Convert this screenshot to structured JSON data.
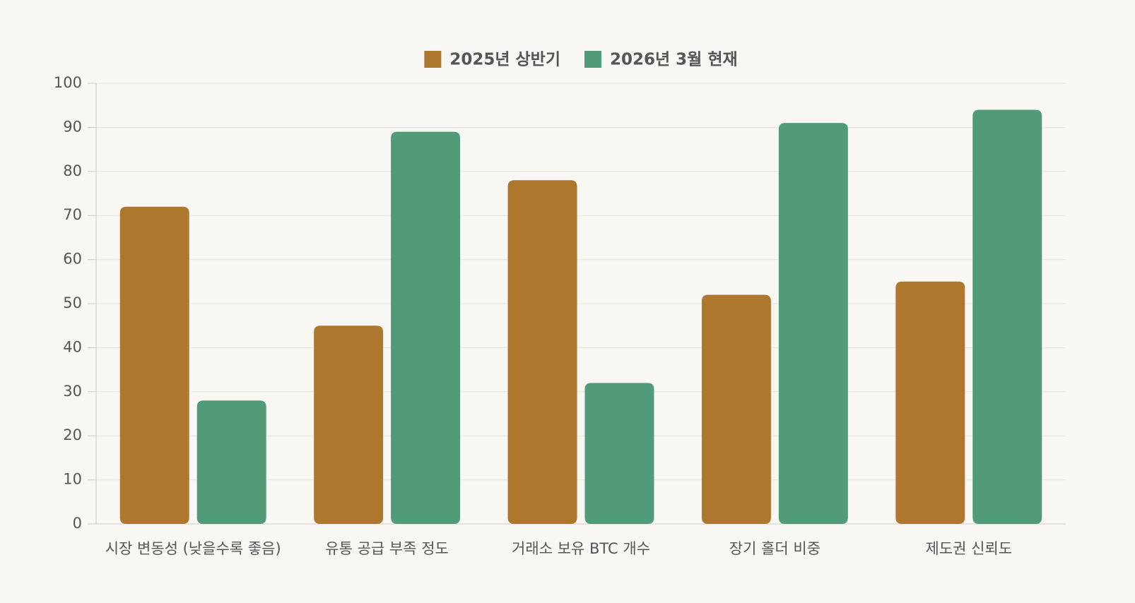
{
  "chart_data": {
    "type": "bar",
    "categories": [
      "시장 변동성 (낮을수록 좋음)",
      "유통 공급 부족 정도",
      "거래소 보유 BTC 개수",
      "장기 홀더 비중",
      "제도권 신뢰도"
    ],
    "series": [
      {
        "name": "2025년 상반기",
        "color": "#ad782e",
        "values": [
          72,
          45,
          78,
          52,
          55
        ]
      },
      {
        "name": "2026년 3월 현재",
        "color": "#519b7a",
        "values": [
          28,
          89,
          32,
          91,
          94
        ]
      }
    ],
    "ylim": [
      0,
      100
    ],
    "yticks": [
      0,
      10,
      20,
      30,
      40,
      50,
      60,
      70,
      80,
      90,
      100
    ],
    "grid": true,
    "legend": "top"
  }
}
